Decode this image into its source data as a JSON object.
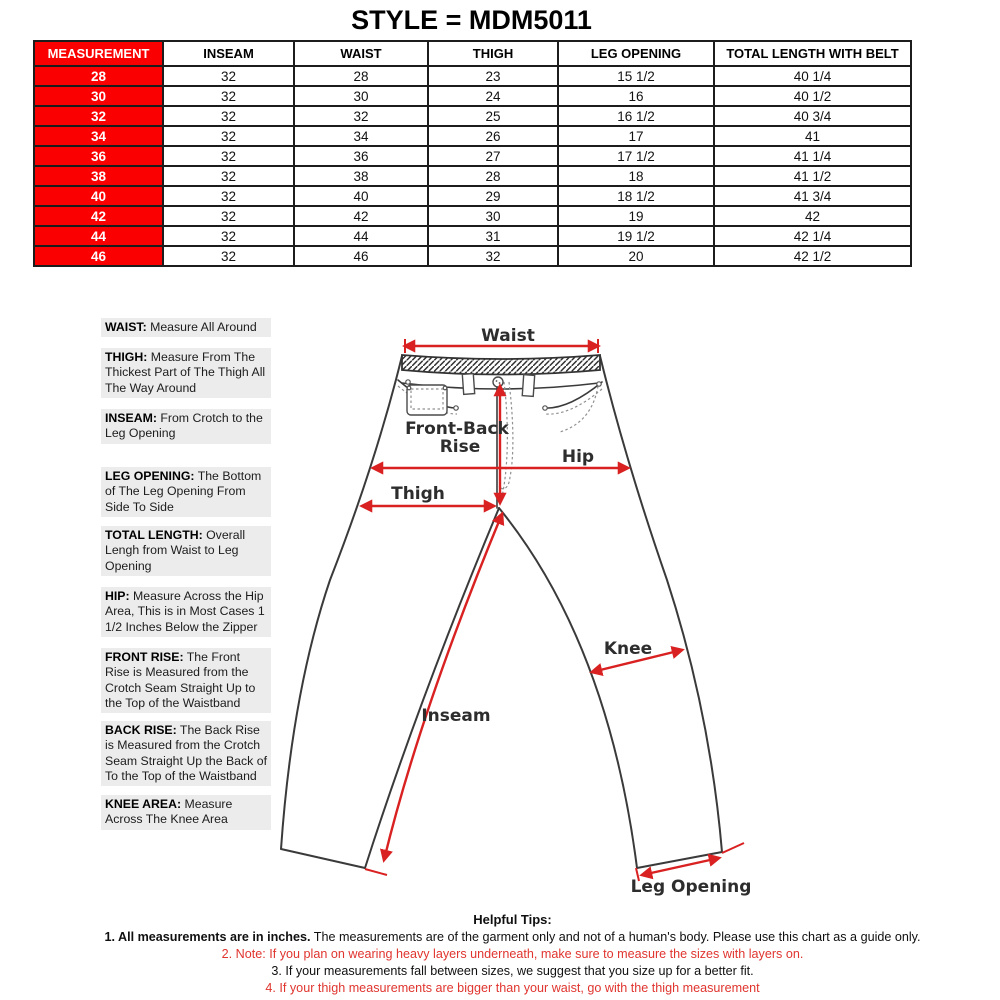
{
  "title": "STYLE = MDM5011",
  "size_chart": {
    "columns": [
      "MEASUREMENT",
      "INSEAM",
      "WAIST",
      "THIGH",
      "LEG OPENING",
      "TOTAL LENGTH WITH BELT"
    ],
    "rows": [
      [
        "28",
        "32",
        "28",
        "23",
        "15 1/2",
        "40 1/4"
      ],
      [
        "30",
        "32",
        "30",
        "24",
        "16",
        "40 1/2"
      ],
      [
        "32",
        "32",
        "32",
        "25",
        "16 1/2",
        "40 3/4"
      ],
      [
        "34",
        "32",
        "34",
        "26",
        "17",
        "41"
      ],
      [
        "36",
        "32",
        "36",
        "27",
        "17 1/2",
        "41 1/4"
      ],
      [
        "38",
        "32",
        "38",
        "28",
        "18",
        "41 1/2"
      ],
      [
        "40",
        "32",
        "40",
        "29",
        "18 1/2",
        "41 3/4"
      ],
      [
        "42",
        "32",
        "42",
        "30",
        "19",
        "42"
      ],
      [
        "44",
        "32",
        "44",
        "31",
        "19 1/2",
        "42 1/4"
      ],
      [
        "46",
        "32",
        "46",
        "32",
        "20",
        "42 1/2"
      ]
    ]
  },
  "definitions": [
    {
      "term": "WAIST:",
      "text": "Measure All Around"
    },
    {
      "term": "THIGH:",
      "text": "Measure From The Thickest Part of The Thigh All The Way Around"
    },
    {
      "term": "INSEAM:",
      "text": "From Crotch to the Leg Opening"
    },
    {
      "term": "LEG OPENING:",
      "text": "The Bottom of The Leg Opening From Side To Side"
    },
    {
      "term": "TOTAL LENGTH:",
      "text": "Overall Lengh from Waist to Leg Opening"
    },
    {
      "term": "HIP:",
      "text": "Measure Across the Hip Area, This is in Most Cases 1 1/2 Inches Below the Zipper"
    },
    {
      "term": "FRONT RISE:",
      "text": "The Front Rise is Measured from the Crotch Seam Straight Up to the Top of the Waistband"
    },
    {
      "term": "BACK RISE:",
      "text": "The Back Rise is Measured from the Crotch Seam Straight Up the Back of To the Top of the Waistband"
    },
    {
      "term": "KNEE AREA:",
      "text": "Measure Across The Knee Area"
    }
  ],
  "diagram": {
    "labels": {
      "waist": "Waist",
      "front_back_rise_line1": "Front-Back",
      "front_back_rise_line2": "Rise",
      "hip": "Hip",
      "thigh": "Thigh",
      "knee": "Knee",
      "inseam": "Inseam",
      "leg_opening": "Leg Opening"
    }
  },
  "tips": {
    "heading": "Helpful Tips:",
    "items": [
      {
        "bold": "1. All measurements are in inches.",
        "text": " The measurements are of the garment only and not of a human's body. Please use this chart as a guide only.",
        "red": false
      },
      {
        "bold": "",
        "text": "2. Note: If you plan on wearing heavy layers underneath, make sure to measure the sizes with layers on.",
        "red": true
      },
      {
        "bold": "",
        "text": "3. If your measurements fall between sizes, we suggest that you size up for a better fit.",
        "red": false
      },
      {
        "bold": "",
        "text": "4. If your thigh measurements are bigger than your waist, go with the thigh measurement",
        "red": true
      }
    ]
  },
  "colors": {
    "highlight_red": "#fb0000",
    "tip_red": "#e0352f",
    "arrow_red": "#d92121",
    "definition_bg": "#ececec",
    "border_dark": "#1c1c1c"
  }
}
